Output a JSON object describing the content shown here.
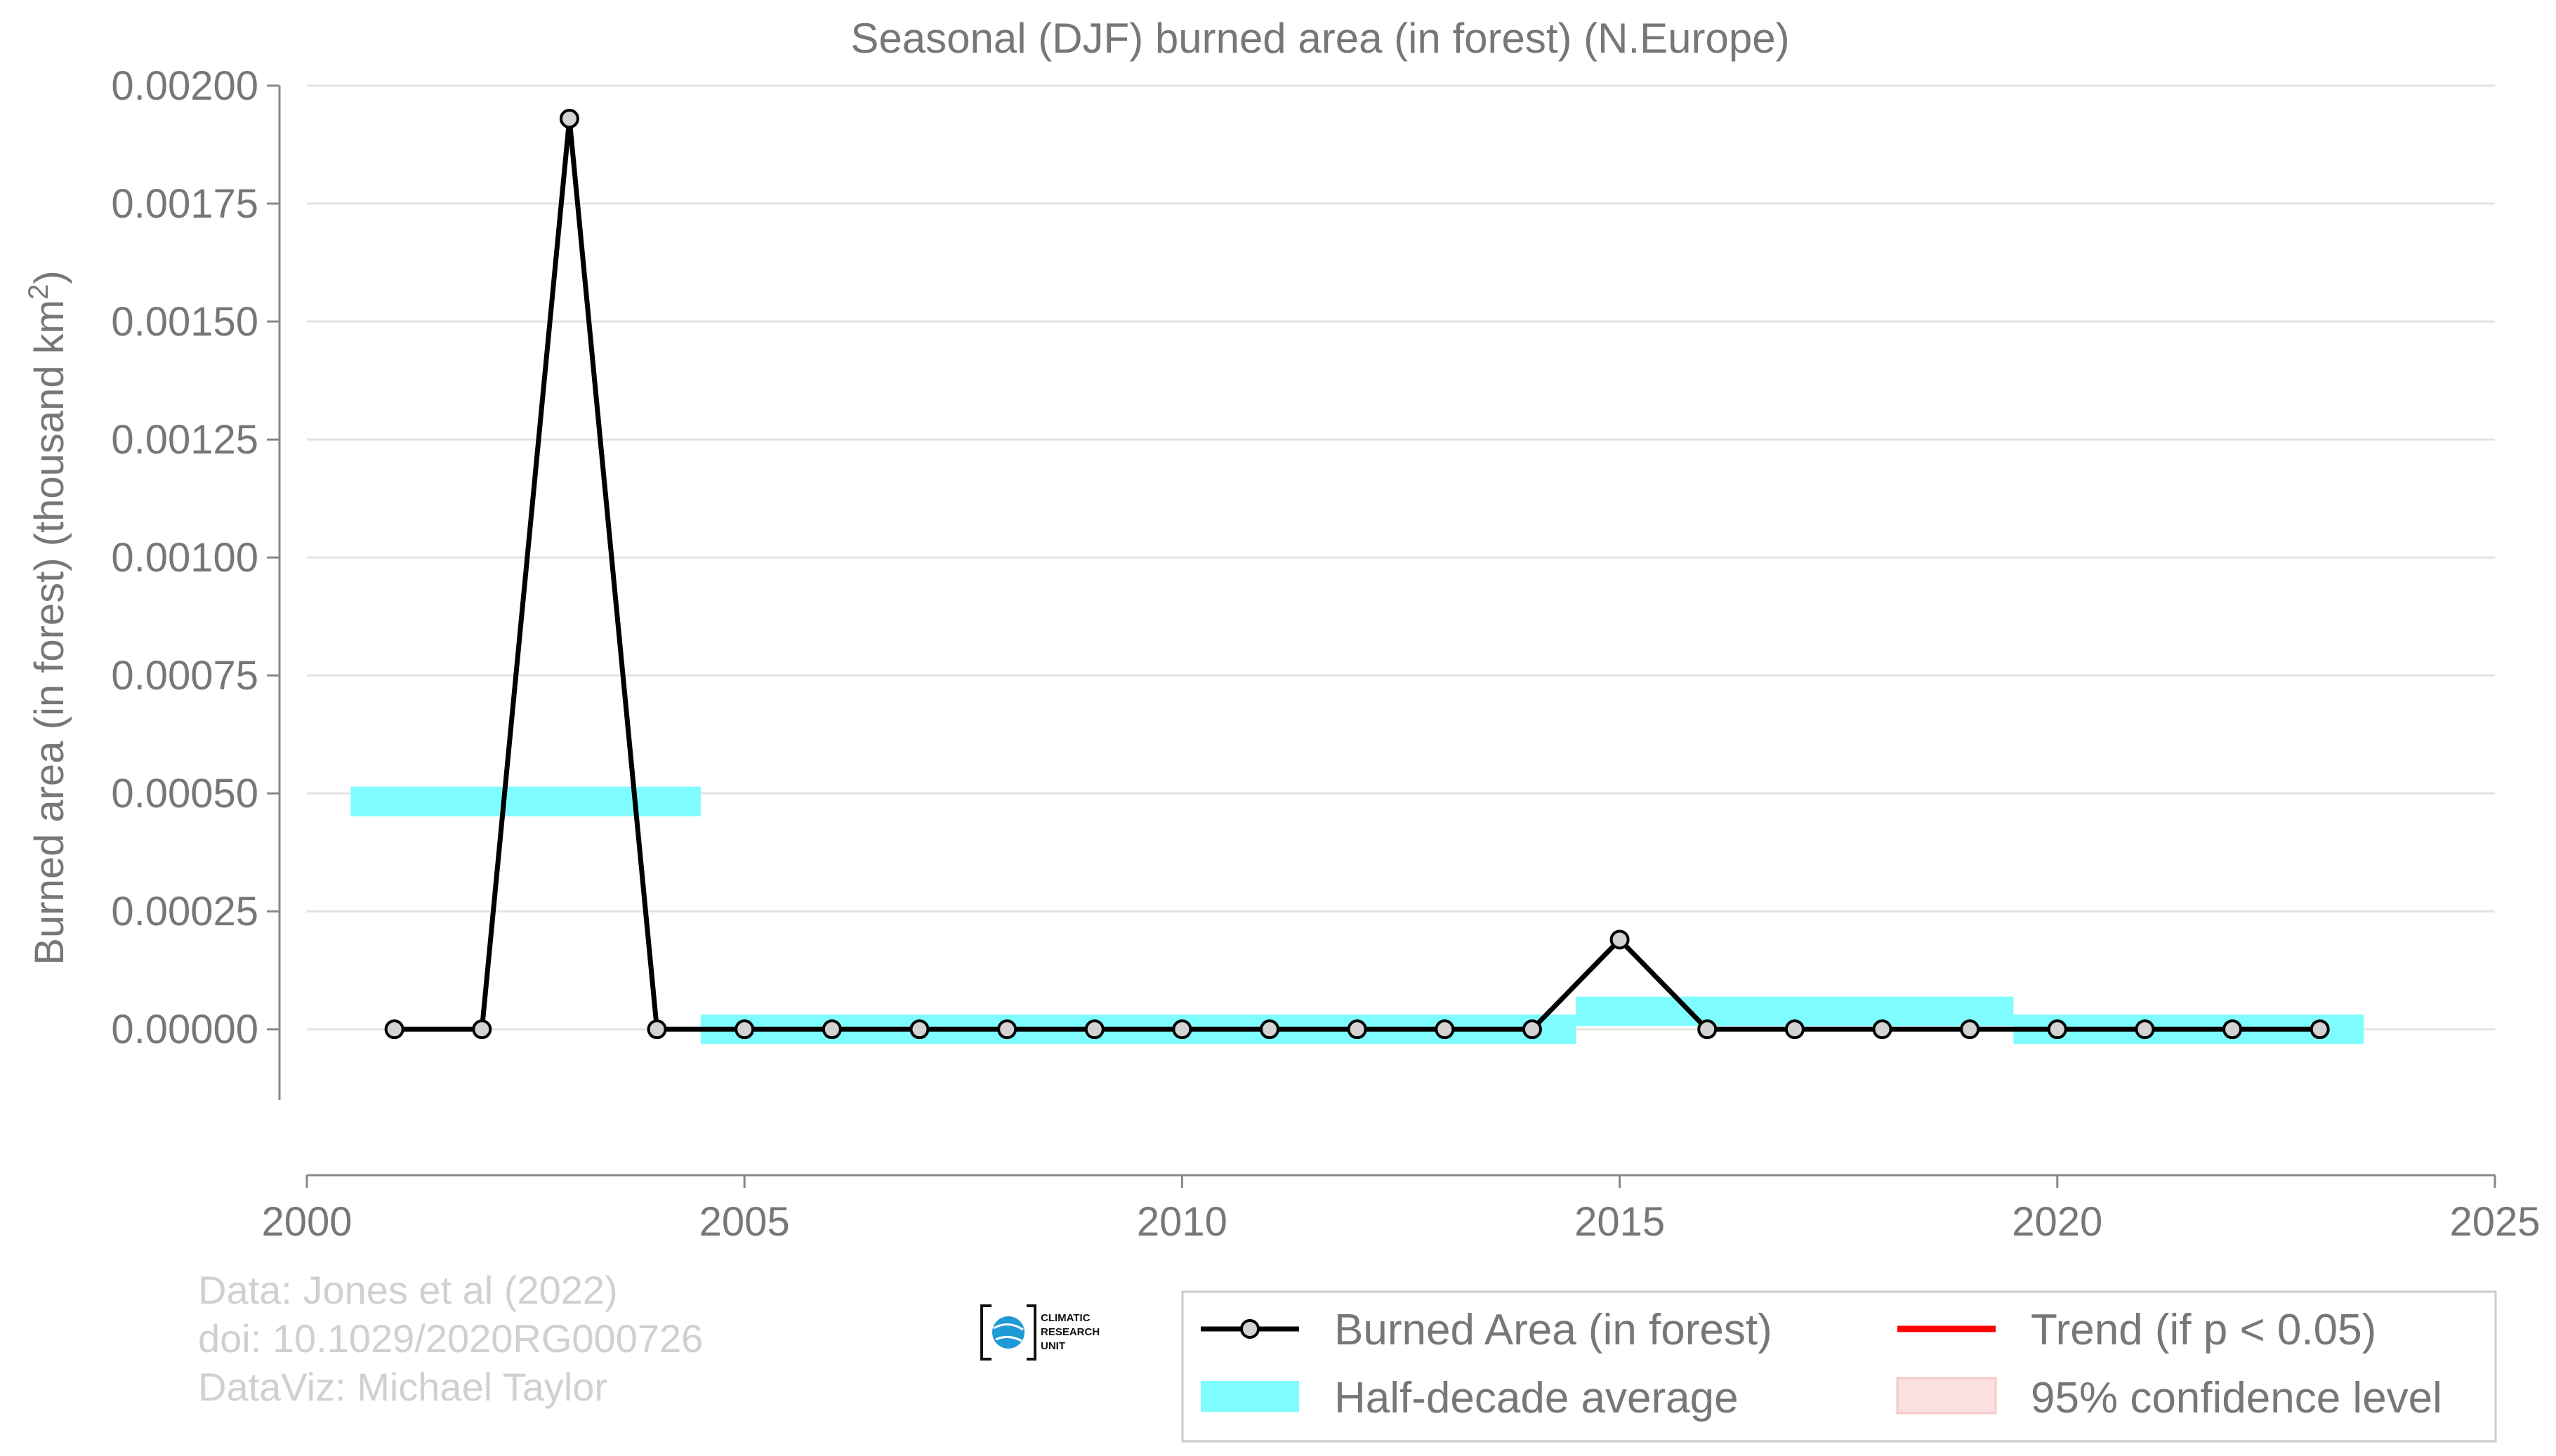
{
  "chart_data": {
    "type": "line",
    "title": "Seasonal (DJF) burned area (in forest) (N.Europe)",
    "ylabel_main": "Burned area (in forest) (thousand km",
    "ylabel_sup": "2",
    "ylabel_end": ")",
    "xlim": [
      2000,
      2025
    ],
    "ylim": [
      -0.00015,
      0.002
    ],
    "x_ticks": [
      2000,
      2005,
      2010,
      2015,
      2020,
      2025
    ],
    "x_tick_labels": [
      "2000",
      "2005",
      "2010",
      "2015",
      "2020",
      "2025"
    ],
    "y_ticks": [
      0,
      0.00025,
      0.0005,
      0.00075,
      0.001,
      0.00125,
      0.0015,
      0.00175,
      0.002
    ],
    "y_tick_labels": [
      "0.00000",
      "0.00025",
      "0.00050",
      "0.00075",
      "0.00100",
      "0.00125",
      "0.00150",
      "0.00175",
      "0.00200"
    ],
    "grid": true,
    "series": [
      {
        "name": "Burned Area (in forest)",
        "color": "#000000",
        "marker_fill": "#d3d3d3",
        "x": [
          2001,
          2002,
          2003,
          2004,
          2005,
          2006,
          2007,
          2008,
          2009,
          2010,
          2011,
          2012,
          2013,
          2014,
          2015,
          2016,
          2017,
          2018,
          2019,
          2020,
          2021,
          2022,
          2023
        ],
        "y": [
          0,
          0,
          0.00193,
          0,
          0,
          0,
          0,
          0,
          0,
          0,
          0,
          0,
          0,
          0,
          0.00019,
          0,
          0,
          0,
          0,
          0,
          0,
          0,
          0
        ]
      }
    ],
    "half_decade_average": {
      "name": "Half-decade average",
      "color": "#7ffcff",
      "segments": [
        {
          "x0": 2000.5,
          "x1": 2004.5,
          "y": 0.000483
        },
        {
          "x0": 2004.5,
          "x1": 2014.5,
          "y": 0.0
        },
        {
          "x0": 2014.5,
          "x1": 2019.5,
          "y": 3.8e-05
        },
        {
          "x0": 2019.5,
          "x1": 2023.5,
          "y": 0.0
        }
      ]
    },
    "legend": {
      "position": "bottom-right",
      "items": [
        {
          "label": "Burned Area (in forest)",
          "kind": "line-marker",
          "color": "#000000"
        },
        {
          "label": "Trend (if p < 0.05)",
          "kind": "line",
          "color": "#ff0000"
        },
        {
          "label": "Half-decade average",
          "kind": "patch",
          "color": "#7ffcff"
        },
        {
          "label": "95% confidence level",
          "kind": "patch",
          "color": "#fde0e0"
        }
      ]
    },
    "credits": [
      "Data: Jones et al (2022)",
      "doi: 10.1029/2020RG000726",
      "DataViz: Michael Taylor"
    ],
    "logo_lines": [
      "CLIMATIC",
      "RESEARCH",
      "UNIT"
    ]
  }
}
